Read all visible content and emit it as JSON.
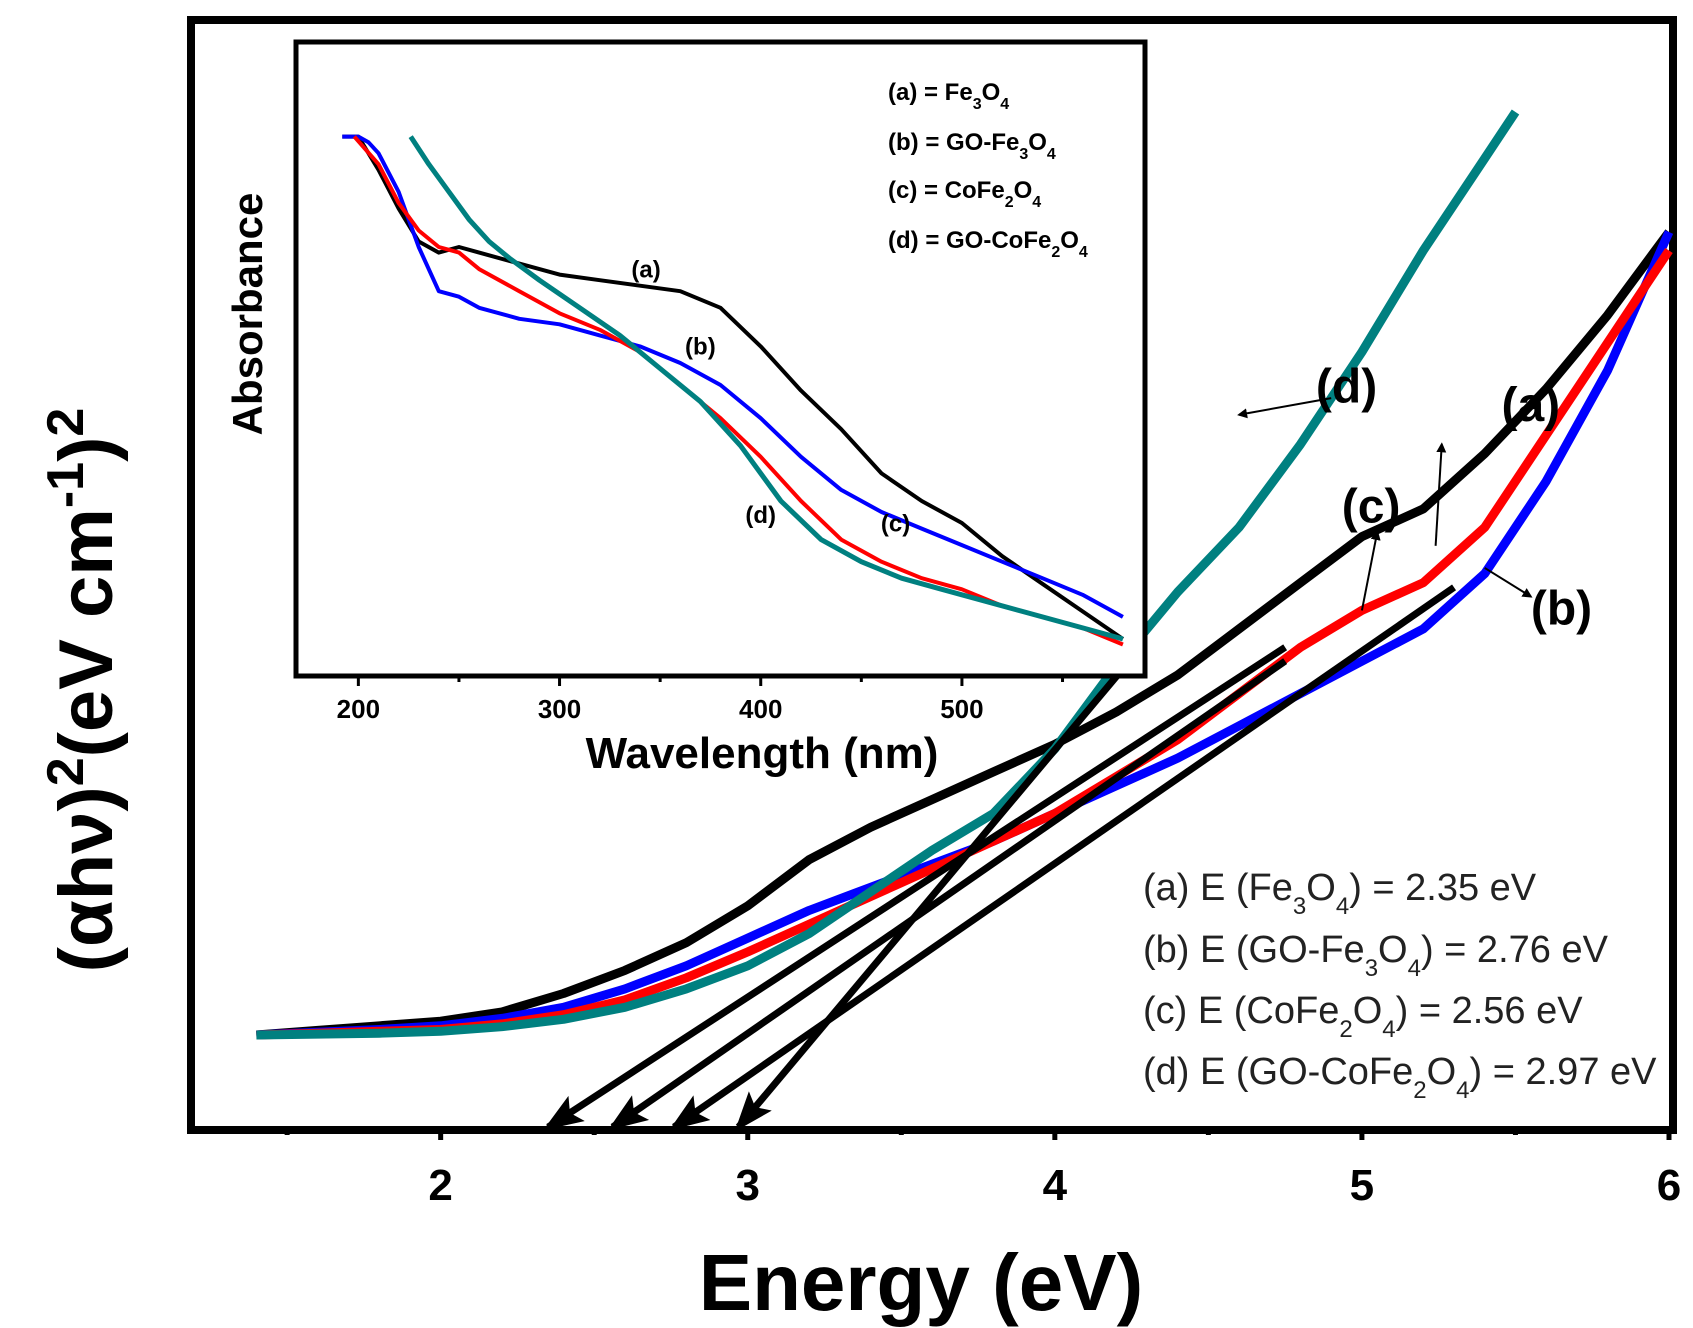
{
  "chart_data": [
    {
      "id": "main",
      "type": "line",
      "title": "",
      "xlabel": "Energy (eV)",
      "ylabel_parts": {
        "base": "(αhν)",
        "sup1": "2",
        "mid": "(eV cm",
        "sup2": "-1",
        "end": ")",
        "sup3": "2"
      },
      "xlim": [
        1.2,
        6.0
      ],
      "ylim": [
        0,
        1
      ],
      "x_ticks": [
        2,
        3,
        4,
        5,
        6
      ],
      "x_tick_labels": [
        "2",
        "3",
        "4",
        "5",
        "6"
      ],
      "y_ticks": [],
      "series": [
        {
          "name": "(a)",
          "color": "#000000",
          "x": [
            1.4,
            1.6,
            1.8,
            2.0,
            2.2,
            2.4,
            2.6,
            2.8,
            3.0,
            3.2,
            3.4,
            3.6,
            3.8,
            4.0,
            4.2,
            4.4,
            4.6,
            4.8,
            5.0,
            5.2,
            5.4,
            5.6,
            5.8,
            6.0
          ],
          "y": [
            0.0,
            0.005,
            0.01,
            0.015,
            0.025,
            0.045,
            0.07,
            0.1,
            0.14,
            0.19,
            0.225,
            0.255,
            0.285,
            0.315,
            0.35,
            0.39,
            0.44,
            0.49,
            0.54,
            0.57,
            0.63,
            0.7,
            0.78,
            0.87
          ]
        },
        {
          "name": "(b)",
          "color": "#0000ff",
          "x": [
            1.4,
            1.6,
            1.8,
            2.0,
            2.2,
            2.4,
            2.6,
            2.8,
            3.0,
            3.2,
            3.4,
            3.6,
            3.8,
            4.0,
            4.2,
            4.4,
            4.6,
            4.8,
            5.0,
            5.2,
            5.4,
            5.6,
            5.8,
            6.0
          ],
          "y": [
            0.0,
            0.003,
            0.006,
            0.01,
            0.018,
            0.03,
            0.05,
            0.075,
            0.105,
            0.135,
            0.16,
            0.185,
            0.21,
            0.24,
            0.27,
            0.3,
            0.335,
            0.37,
            0.405,
            0.44,
            0.5,
            0.6,
            0.72,
            0.87
          ]
        },
        {
          "name": "(c)",
          "color": "#ff0000",
          "x": [
            1.4,
            1.6,
            1.8,
            2.0,
            2.2,
            2.4,
            2.6,
            2.8,
            3.0,
            3.2,
            3.4,
            3.6,
            3.8,
            4.0,
            4.2,
            4.4,
            4.6,
            4.8,
            5.0,
            5.2,
            5.4,
            5.6,
            5.8,
            6.0
          ],
          "y": [
            0.0,
            0.002,
            0.004,
            0.006,
            0.012,
            0.022,
            0.038,
            0.062,
            0.09,
            0.12,
            0.15,
            0.18,
            0.21,
            0.24,
            0.28,
            0.32,
            0.37,
            0.42,
            0.46,
            0.49,
            0.55,
            0.65,
            0.75,
            0.85
          ]
        },
        {
          "name": "(d)",
          "color": "#008080",
          "x": [
            1.4,
            1.6,
            1.8,
            2.0,
            2.2,
            2.4,
            2.6,
            2.8,
            3.0,
            3.2,
            3.4,
            3.6,
            3.8,
            4.0,
            4.2,
            4.4,
            4.6,
            4.8,
            5.0,
            5.2,
            5.4,
            5.5
          ],
          "y": [
            0.0,
            0.001,
            0.002,
            0.004,
            0.009,
            0.017,
            0.03,
            0.05,
            0.075,
            0.11,
            0.155,
            0.2,
            0.24,
            0.31,
            0.4,
            0.48,
            0.55,
            0.64,
            0.74,
            0.85,
            0.95,
            1.0
          ]
        }
      ],
      "tangent_lines": [
        {
          "series": "(a)",
          "x_intercept": 2.35,
          "end": [
            4.75,
            0.42
          ]
        },
        {
          "series": "(c)",
          "x_intercept": 2.56,
          "end": [
            4.75,
            0.405
          ]
        },
        {
          "series": "(b)",
          "x_intercept": 2.76,
          "end": [
            5.3,
            0.485
          ]
        },
        {
          "series": "(d)",
          "x_intercept": 2.97,
          "end": [
            4.28,
            0.42
          ]
        }
      ],
      "curve_labels": [
        {
          "text": "(d)",
          "x": 4.95,
          "y": 0.685
        },
        {
          "text": "(a)",
          "x": 5.55,
          "y": 0.665
        },
        {
          "text": "(c)",
          "x": 5.03,
          "y": 0.555
        },
        {
          "text": "(b)",
          "x": 5.65,
          "y": 0.445
        }
      ],
      "arrows": [
        {
          "from": [
            4.9,
            0.69
          ],
          "to": [
            4.6,
            0.672
          ]
        },
        {
          "from": [
            5.24,
            0.53
          ],
          "to": [
            5.26,
            0.64
          ]
        },
        {
          "from": [
            5.0,
            0.46
          ],
          "to": [
            5.05,
            0.545
          ]
        },
        {
          "from": [
            5.4,
            0.506
          ],
          "to": [
            5.55,
            0.475
          ]
        }
      ],
      "legend": {
        "position": "bottom-right",
        "entries": [
          {
            "prefix": "(a) E (Fe",
            "s1": "3",
            "mid": "O",
            "s2": "4",
            "suffix": ") = 2.35 eV"
          },
          {
            "prefix": "(b) E (GO-Fe",
            "s1": "3",
            "mid": "O",
            "s2": "4",
            "suffix": ") = 2.76 eV"
          },
          {
            "prefix": "(c) E (CoFe",
            "s1": "2",
            "mid": "O",
            "s2": "4",
            "suffix": ") = 2.56 eV"
          },
          {
            "prefix": "(d) E (GO-CoFe",
            "s1": "2",
            "mid": "O",
            "s2": "4",
            "suffix": ") = 2.97 eV"
          }
        ]
      }
    },
    {
      "id": "inset",
      "type": "line",
      "title": "",
      "xlabel": "Wavelength (nm)",
      "ylabel": "Absorbance",
      "xlim": [
        170,
        590
      ],
      "ylim": [
        0,
        1
      ],
      "x_ticks": [
        200,
        300,
        400,
        500
      ],
      "x_tick_labels": [
        "200",
        "300",
        "400",
        "500"
      ],
      "series": [
        {
          "name": "(a)",
          "color": "#000000",
          "x": [
            192,
            200,
            210,
            220,
            230,
            240,
            250,
            260,
            280,
            300,
            320,
            340,
            360,
            380,
            400,
            420,
            440,
            460,
            480,
            500,
            520,
            540,
            560,
            580
          ],
          "y": [
            0.93,
            0.93,
            0.87,
            0.8,
            0.74,
            0.72,
            0.73,
            0.72,
            0.7,
            0.68,
            0.67,
            0.66,
            0.65,
            0.62,
            0.55,
            0.47,
            0.4,
            0.32,
            0.27,
            0.23,
            0.17,
            0.12,
            0.07,
            0.02
          ]
        },
        {
          "name": "(b)",
          "color": "#0000ff",
          "x": [
            192,
            200,
            205,
            210,
            220,
            230,
            240,
            250,
            260,
            280,
            300,
            320,
            340,
            360,
            380,
            400,
            420,
            440,
            460,
            480,
            500,
            520,
            540,
            560,
            580
          ],
          "y": [
            0.93,
            0.93,
            0.92,
            0.9,
            0.83,
            0.73,
            0.65,
            0.64,
            0.62,
            0.6,
            0.59,
            0.57,
            0.55,
            0.52,
            0.48,
            0.42,
            0.35,
            0.29,
            0.25,
            0.22,
            0.19,
            0.16,
            0.13,
            0.1,
            0.06
          ]
        },
        {
          "name": "(c)",
          "color": "#ff0000",
          "x": [
            198,
            210,
            220,
            230,
            240,
            250,
            260,
            280,
            300,
            320,
            340,
            360,
            380,
            400,
            420,
            440,
            460,
            480,
            500,
            520,
            540,
            560,
            580
          ],
          "y": [
            0.93,
            0.88,
            0.81,
            0.76,
            0.73,
            0.72,
            0.69,
            0.65,
            0.61,
            0.58,
            0.54,
            0.48,
            0.42,
            0.35,
            0.27,
            0.2,
            0.16,
            0.13,
            0.11,
            0.08,
            0.06,
            0.04,
            0.01
          ]
        },
        {
          "name": "(d)",
          "color": "#008080",
          "x": [
            226,
            235,
            245,
            255,
            265,
            275,
            290,
            310,
            330,
            350,
            370,
            390,
            410,
            430,
            450,
            470,
            490,
            510,
            530,
            550,
            570,
            580
          ],
          "y": [
            0.93,
            0.88,
            0.83,
            0.78,
            0.74,
            0.71,
            0.67,
            0.62,
            0.57,
            0.51,
            0.45,
            0.37,
            0.27,
            0.2,
            0.16,
            0.13,
            0.11,
            0.09,
            0.07,
            0.05,
            0.03,
            0.02
          ]
        }
      ],
      "curve_labels": [
        {
          "text": "(a)",
          "x": 343,
          "y": 0.675
        },
        {
          "text": "(b)",
          "x": 370,
          "y": 0.535
        },
        {
          "text": "(d)",
          "x": 400,
          "y": 0.23
        },
        {
          "text": "(c)",
          "x": 467,
          "y": 0.215
        }
      ],
      "legend": {
        "position": "top-right",
        "entries": [
          {
            "prefix": "(a) = Fe",
            "s1": "3",
            "mid": "O",
            "s2": "4",
            "suffix": ""
          },
          {
            "prefix": "(b) = GO-Fe",
            "s1": "3",
            "mid": "O",
            "s2": "4",
            "suffix": ""
          },
          {
            "prefix": "(c) = CoFe",
            "s1": "2",
            "mid": "O",
            "s2": "4",
            "suffix": ""
          },
          {
            "prefix": "(d) = GO-CoFe",
            "s1": "2",
            "mid": "O",
            "s2": "4",
            "suffix": ""
          }
        ]
      }
    }
  ]
}
